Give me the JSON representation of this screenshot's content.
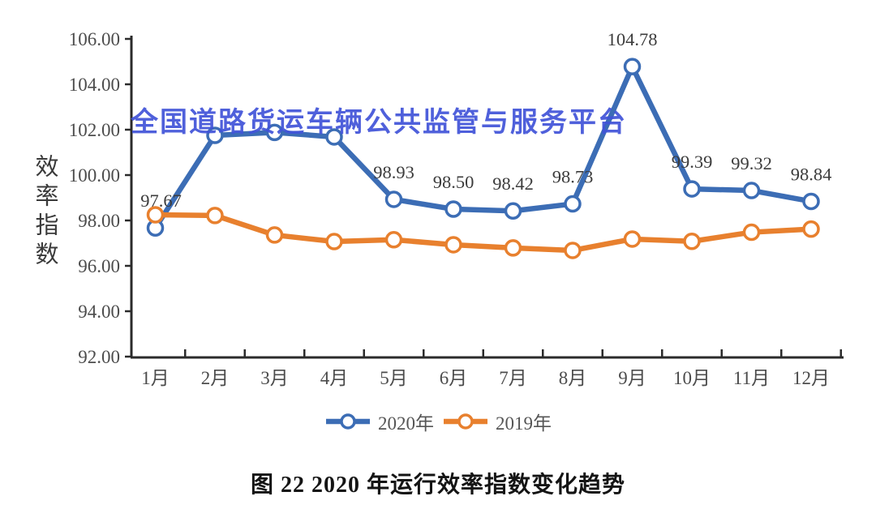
{
  "chart_data": {
    "type": "line",
    "title": "图 22 2020 年运行效率指数变化趋势",
    "watermark": "全国道路货运车辆公共监管与服务平台",
    "watermark_color": "#4153d8",
    "ylabel": "效率指数",
    "categories": [
      "1月",
      "2月",
      "3月",
      "4月",
      "5月",
      "6月",
      "7月",
      "8月",
      "9月",
      "10月",
      "11月",
      "12月"
    ],
    "ylim": [
      92,
      106
    ],
    "ytick_step": 2,
    "ytick_format_decimals": 2,
    "grid": false,
    "legend_position": "bottom",
    "axis_color": "#2b2b2b",
    "tick_label_color": "#4c4c4c",
    "data_label_color": "#3c3c3c",
    "series": [
      {
        "name": "2020年",
        "color": "#3C6DB5",
        "values": [
          97.67,
          101.75,
          101.88,
          101.68,
          98.93,
          98.5,
          98.42,
          98.73,
          104.78,
          99.39,
          99.32,
          98.84
        ],
        "point_labels": [
          "97.67",
          "",
          "",
          "",
          "98.93",
          "98.50",
          "98.42",
          "98.73",
          "104.78",
          "99.39",
          "99.32",
          "98.84"
        ]
      },
      {
        "name": "2019年",
        "color": "#E8802E",
        "values": [
          98.25,
          98.22,
          97.36,
          97.07,
          97.15,
          96.93,
          96.79,
          96.68,
          97.18,
          97.08,
          97.48,
          97.62
        ],
        "point_labels": [
          "",
          "",
          "",
          "",
          "",
          "",
          "",
          "",
          "",
          "",
          "",
          ""
        ]
      }
    ]
  }
}
